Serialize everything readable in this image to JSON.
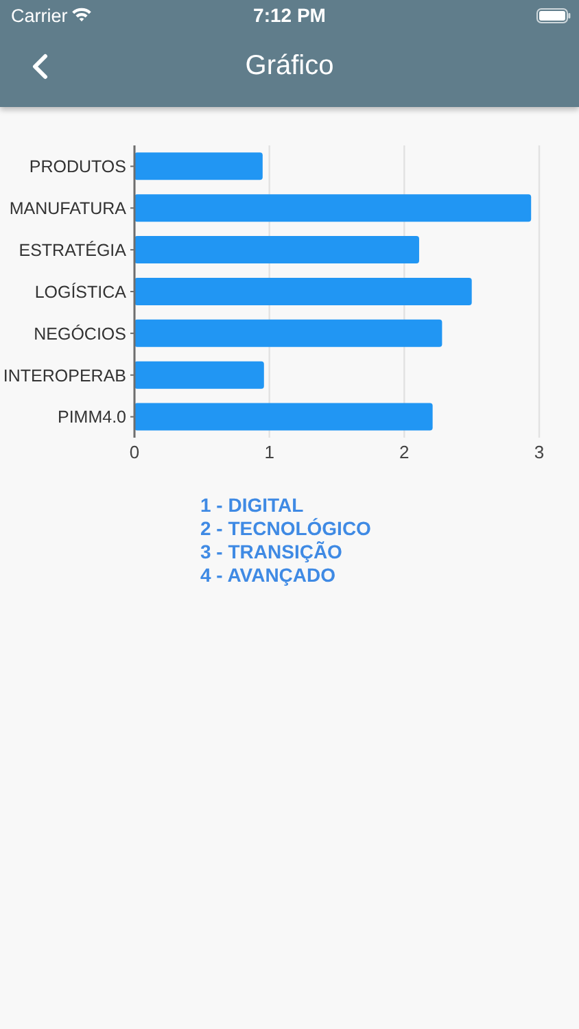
{
  "chart_data": {
    "type": "bar",
    "orientation": "horizontal",
    "title": "Gráfico",
    "categories": [
      "PRODUTOS",
      "MANUFATURA",
      "ESTRATÉGIA",
      "LOGÍSTICA",
      "NEGÓCIOS",
      "INTEROPERAB",
      "PIMM4.0"
    ],
    "values": [
      0.95,
      2.94,
      2.11,
      2.5,
      2.28,
      0.96,
      2.21
    ],
    "color": "#2196f3",
    "xlim": [
      0,
      3
    ],
    "xticks": [
      0,
      1,
      2,
      3
    ],
    "grid": "x",
    "annotations": [
      "Carrier",
      "7:12 PM",
      "1 - DIGITAL",
      "2 - TECNOLÓGICO",
      "3 - TRANSIÇÃO",
      "4 - AVANÇADO"
    ]
  }
}
